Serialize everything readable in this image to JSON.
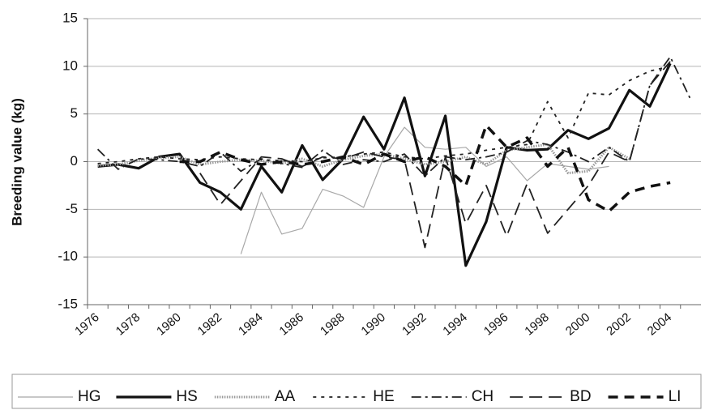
{
  "chart_data": {
    "type": "line",
    "ylabel": "Breeding value (kg)",
    "categories": [
      "1976",
      null,
      "1978",
      null,
      "1980",
      null,
      "1982",
      null,
      "1984",
      null,
      "1986",
      null,
      "1988",
      null,
      "1990",
      null,
      "1992",
      null,
      "1994",
      null,
      "1996",
      null,
      "1998",
      null,
      "2000",
      null,
      "2002",
      null,
      "2004",
      null
    ],
    "ylim": [
      -15,
      15
    ],
    "yticks": [
      -15,
      -10,
      -5,
      0,
      5,
      10,
      15
    ],
    "grid": true,
    "legend": "bottom",
    "series": [
      {
        "name": "HG",
        "color": "#a8a8a8",
        "style": "thin",
        "values": [
          null,
          null,
          null,
          null,
          null,
          null,
          null,
          -9.7,
          -3.2,
          -7.6,
          -7.0,
          -2.9,
          -3.6,
          -4.8,
          0.5,
          3.6,
          1.5,
          1.3,
          1.5,
          -0.5,
          0.5,
          -2.0,
          -0.2,
          -0.5,
          -0.8,
          -0.5,
          null,
          null,
          null,
          null
        ]
      },
      {
        "name": "HS",
        "color": "#111111",
        "style": "thick",
        "values": [
          -0.5,
          -0.3,
          -0.7,
          0.5,
          0.8,
          -2.2,
          -3.2,
          -5.0,
          -0.5,
          -3.2,
          1.7,
          -1.9,
          0.3,
          4.7,
          1.3,
          6.7,
          -1.5,
          4.8,
          -10.9,
          -6.3,
          1.5,
          1.2,
          1.3,
          3.3,
          2.4,
          3.5,
          7.5,
          5.8,
          10.3,
          null
        ]
      },
      {
        "name": "AA",
        "color": "#999999",
        "style": "dotted",
        "values": [
          -0.4,
          -0.3,
          0.1,
          0.4,
          0.5,
          -0.3,
          0.0,
          0.2,
          0.1,
          -0.2,
          0.3,
          -0.5,
          0.2,
          0.6,
          0.8,
          0.3,
          -0.3,
          0.0,
          0.5,
          -0.3,
          1.2,
          1.5,
          1.8,
          -1.2,
          -1.0,
          1.5,
          0.3,
          null,
          null,
          null
        ]
      },
      {
        "name": "HE",
        "color": "#222222",
        "style": "dash",
        "values": [
          -0.2,
          0.0,
          0.3,
          0.5,
          0.3,
          0.2,
          0.5,
          0.3,
          0.2,
          0.1,
          0.0,
          0.4,
          0.5,
          0.8,
          1.0,
          0.5,
          0.3,
          0.6,
          0.8,
          1.2,
          1.5,
          1.8,
          6.3,
          2.5,
          7.2,
          7.0,
          8.5,
          9.5,
          10.0,
          null
        ]
      },
      {
        "name": "CH",
        "color": "#222222",
        "style": "dashdot",
        "values": [
          1.3,
          -0.8,
          0.3,
          0.2,
          0.0,
          -0.5,
          1.0,
          -1.0,
          0.3,
          -0.2,
          -0.6,
          1.2,
          -0.3,
          0.2,
          0.0,
          0.8,
          -1.5,
          0.5,
          0.2,
          0.5,
          1.0,
          2.2,
          1.8,
          1.0,
          0.0,
          1.5,
          0.0,
          8.0,
          11.0,
          6.5
        ]
      },
      {
        "name": "BD",
        "color": "#222222",
        "style": "longdash",
        "values": [
          null,
          null,
          null,
          null,
          null,
          -1.2,
          -4.5,
          -2.0,
          0.5,
          0.3,
          -0.5,
          0.5,
          0.3,
          1.0,
          0.5,
          0.2,
          -9.0,
          0.5,
          -6.5,
          -2.5,
          -7.8,
          -2.3,
          -7.5,
          -5.0,
          -2.5,
          1.0,
          0.0,
          8.0,
          10.5,
          null
        ]
      },
      {
        "name": "LI",
        "color": "#111111",
        "style": "thickdash",
        "values": [
          null,
          null,
          null,
          null,
          0.0,
          0.0,
          1.0,
          0.2,
          -0.3,
          0.0,
          -0.3,
          0.0,
          0.5,
          -0.3,
          0.8,
          0.0,
          0.5,
          -0.5,
          -2.5,
          3.8,
          1.5,
          2.5,
          -0.5,
          1.5,
          -4.0,
          -5.2,
          -3.2,
          -2.6,
          -2.2,
          null
        ]
      }
    ]
  }
}
